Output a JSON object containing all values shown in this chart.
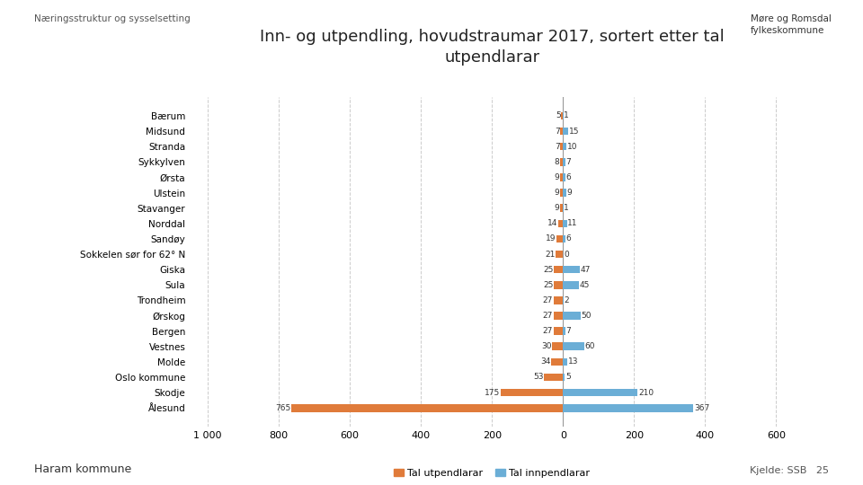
{
  "title": "Inn- og utpendling, hovudstraumar 2017, sortert etter tal\nutpendlarar",
  "header": "Næringsstruktur og sysselsetting",
  "footer_left": "Haram kommune",
  "footer_right": "Kjelde: SSB   25",
  "legend_utpend": "Tal utpendlarar",
  "legend_innpend": "Tal innpendlarar",
  "color_utpend": "#E07B3A",
  "color_innpend": "#6BAED6",
  "categories": [
    "Bærum",
    "Midsund",
    "Stranda",
    "Sykkylven",
    "Ørsta",
    "Ulstein",
    "Stavanger",
    "Norddal",
    "Sandøy",
    "Sokkelen sør for 62° N",
    "Giska",
    "Sula",
    "Trondheim",
    "Ørskog",
    "Bergen",
    "Vestnes",
    "Molde",
    "Oslo kommune",
    "Skodje",
    "Ålesund"
  ],
  "utpend": [
    5,
    7,
    7,
    8,
    9,
    9,
    9,
    14,
    19,
    21,
    25,
    25,
    27,
    27,
    27,
    30,
    34,
    53,
    175,
    765
  ],
  "innpend": [
    1,
    15,
    10,
    7,
    6,
    9,
    1,
    11,
    6,
    0,
    47,
    45,
    2,
    50,
    7,
    60,
    13,
    5,
    210,
    367
  ],
  "xlim": [
    -1050,
    650
  ],
  "xticks": [
    -1000,
    -800,
    -600,
    -400,
    -200,
    0,
    200,
    400,
    600
  ],
  "xticklabels": [
    "1 000",
    "800",
    "600",
    "400",
    "200",
    "0",
    "200",
    "400",
    "600"
  ],
  "background": "#FFFFFF"
}
